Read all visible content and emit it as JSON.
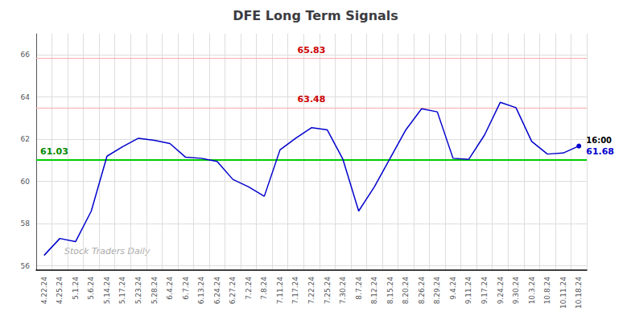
{
  "chart_data": {
    "type": "line",
    "title": "DFE Long Term Signals",
    "watermark": "Stock Traders Daily",
    "categories": [
      "4.22.24",
      "4.25.24",
      "5.1.24",
      "5.6.24",
      "5.14.24",
      "5.17.24",
      "5.23.24",
      "5.28.24",
      "6.4.24",
      "6.7.24",
      "6.13.24",
      "6.24.24",
      "6.27.24",
      "7.2.24",
      "7.8.24",
      "7.11.24",
      "7.17.24",
      "7.22.24",
      "7.25.24",
      "7.30.24",
      "8.7.24",
      "8.12.24",
      "8.15.24",
      "8.20.24",
      "8.26.24",
      "8.29.24",
      "9.4.24",
      "9.11.24",
      "9.17.24",
      "9.24.24",
      "9.30.24",
      "10.3.24",
      "10.8.24",
      "10.11.24",
      "10.18.24"
    ],
    "values": [
      56.5,
      57.3,
      57.15,
      58.6,
      61.2,
      61.65,
      62.05,
      61.95,
      61.8,
      61.15,
      61.1,
      60.95,
      60.1,
      59.75,
      59.3,
      61.5,
      62.05,
      62.55,
      62.45,
      61.05,
      58.6,
      59.75,
      61.1,
      62.45,
      63.45,
      63.3,
      61.1,
      61.05,
      62.2,
      63.75,
      63.5,
      61.9,
      61.3,
      61.35,
      61.68
    ],
    "color": "#0000cc",
    "ylim": [
      55.8,
      67.0
    ],
    "yticks": [
      56,
      58,
      60,
      62,
      64,
      66
    ],
    "grid": true,
    "hlines": [
      {
        "value": 65.83,
        "label": "65.83",
        "color": "#ffaaaa",
        "label_color": "#cc0000"
      },
      {
        "value": 63.48,
        "label": "63.48",
        "color": "#ffaaaa",
        "label_color": "#cc0000"
      },
      {
        "value": 61.03,
        "label": "61.03",
        "color": "#00cc00",
        "label_color": "#008800"
      }
    ],
    "last_point": {
      "time_label": "16:00",
      "value_label": "61.68",
      "color": "#0000cc"
    }
  }
}
